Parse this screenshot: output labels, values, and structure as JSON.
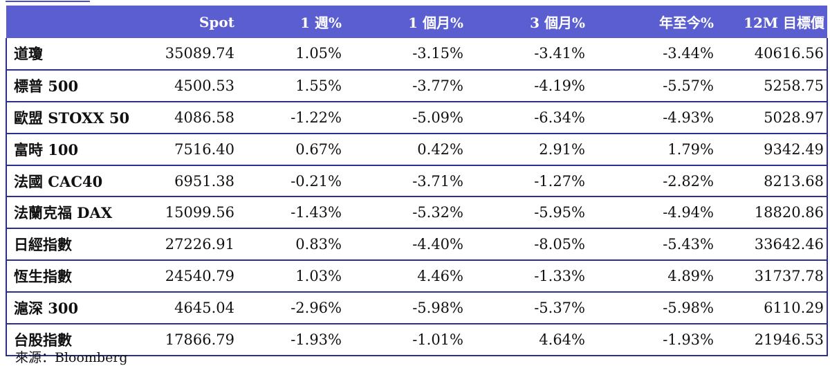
{
  "table": {
    "headers": [
      "",
      "Spot",
      "1 週%",
      "1 個月%",
      "3 個月%",
      "年至今%",
      "12M 目標價"
    ],
    "rows": [
      [
        "道瓊",
        "35089.74",
        "1.05%",
        "-3.15%",
        "-3.41%",
        "-3.44%",
        "40616.56"
      ],
      [
        "標普 500",
        "4500.53",
        "1.55%",
        "-3.77%",
        "-4.19%",
        "-5.57%",
        "5258.75"
      ],
      [
        "歐盟 STOXX 50",
        "4086.58",
        "-1.22%",
        "-5.09%",
        "-6.34%",
        "-4.93%",
        "5028.97"
      ],
      [
        "富時 100",
        "7516.40",
        "0.67%",
        "0.42%",
        "2.91%",
        "1.79%",
        "9342.49"
      ],
      [
        "法國 CAC40",
        "6951.38",
        "-0.21%",
        "-3.71%",
        "-1.27%",
        "-2.82%",
        "8213.68"
      ],
      [
        "法蘭克福 DAX",
        "15099.56",
        "-1.43%",
        "-5.32%",
        "-5.95%",
        "-4.94%",
        "18820.86"
      ],
      [
        "日經指數",
        "27226.91",
        "0.83%",
        "-4.40%",
        "-8.05%",
        "-5.43%",
        "33642.46"
      ],
      [
        "恆生指數",
        "24540.79",
        "1.03%",
        "4.46%",
        "-1.33%",
        "4.89%",
        "31737.78"
      ],
      [
        "滬深 300",
        "4645.04",
        "-2.96%",
        "-5.98%",
        "-5.37%",
        "-5.98%",
        "6110.29"
      ],
      [
        "台股指數",
        "17866.79",
        "-1.93%",
        "-1.01%",
        "4.64%",
        "-1.93%",
        "21946.53"
      ]
    ]
  },
  "source": "來源：Bloomberg",
  "colors": {
    "header_bg": "#5a5ed1",
    "header_text": "#ffffff",
    "rule": "#2b2f8f"
  }
}
